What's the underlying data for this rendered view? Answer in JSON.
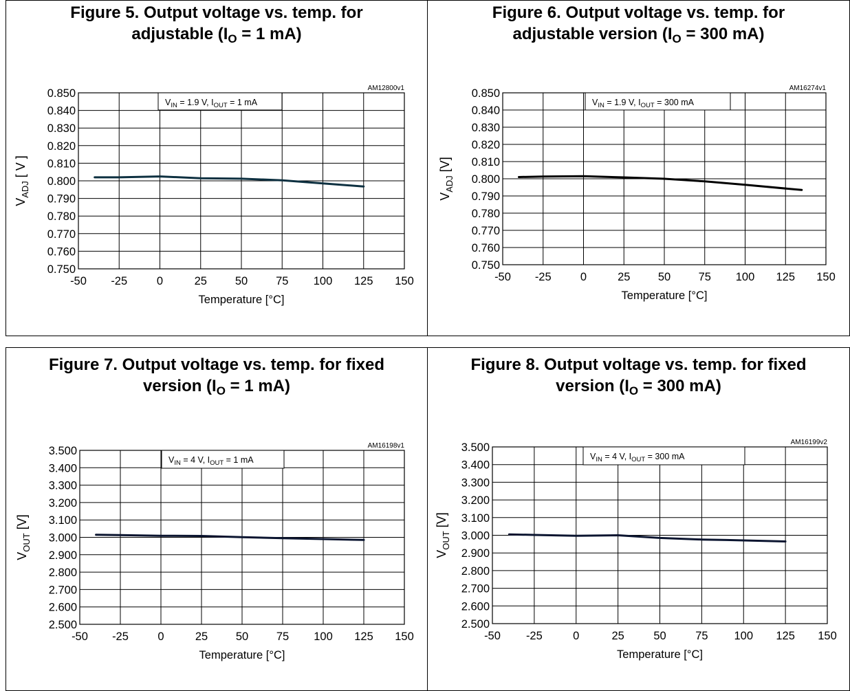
{
  "figures": [
    {
      "number_title": "Figure 5. Output voltage vs. temp. for",
      "title_line2_prefix": "adjustable (I",
      "title_line2_sub": "O",
      "title_line2_suffix": " = 1 mA)",
      "code": "AM12800v1",
      "condition": {
        "v": "V",
        "v_sub": "IN",
        "v_text": " = 1.9 V, I",
        "i_sub": "OUT",
        "i_text": " = 1 mA"
      },
      "ylabel": {
        "main": "V",
        "sub": "ADJ",
        "unit": " [ V ]"
      },
      "xlabel": "Temperature [°C]"
    },
    {
      "number_title": "Figure 6. Output voltage vs. temp. for",
      "title_line2_prefix": "adjustable version (I",
      "title_line2_sub": "O",
      "title_line2_suffix": " = 300 mA)",
      "code": "AM16274v1",
      "condition": {
        "v": "V",
        "v_sub": "IN",
        "v_text": " = 1.9 V, I",
        "i_sub": "OUT",
        "i_text": " = 300 mA"
      },
      "ylabel": {
        "main": "V",
        "sub": "ADJ",
        "unit": "   [V]"
      },
      "xlabel": "Temperature [°C]"
    },
    {
      "number_title": "Figure 7. Output voltage vs. temp. for fixed",
      "title_line2_prefix": "version (I",
      "title_line2_sub": "O",
      "title_line2_suffix": " = 1 mA)",
      "code": "AM16198v1",
      "condition": {
        "v": "V",
        "v_sub": "IN",
        "v_text": " = 4 V, I",
        "i_sub": "OUT",
        "i_text": " = 1 mA"
      },
      "ylabel": {
        "main": "V",
        "sub": "OUT",
        "unit": " [V]"
      },
      "xlabel": "Temperature [°C]"
    },
    {
      "number_title": "Figure 8. Output voltage vs. temp. for fixed",
      "title_line2_prefix": "version (I",
      "title_line2_sub": "O",
      "title_line2_suffix": " = 300 mA)",
      "code": "AM16199v2",
      "condition": {
        "v": "V",
        "v_sub": "IN",
        "v_text": " = 4 V, I",
        "i_sub": "OUT",
        "i_text": " = 300 mA"
      },
      "ylabel": {
        "main": "V",
        "sub": "OUT",
        "unit": " [V]"
      },
      "xlabel": "Temperature [°C]"
    }
  ],
  "chart_data": [
    {
      "type": "line",
      "x": [
        -40,
        -25,
        0,
        25,
        50,
        75,
        100,
        125
      ],
      "series": [
        {
          "values": [
            0.802,
            0.802,
            0.8025,
            0.8015,
            0.8012,
            0.8003,
            0.7985,
            0.7968
          ]
        }
      ],
      "xlim": [
        -50,
        150
      ],
      "ylim": [
        0.75,
        0.85
      ],
      "xticks": [
        "-50",
        "-25",
        "0",
        "25",
        "50",
        "75",
        "100",
        "125",
        "150"
      ],
      "yticks": [
        "0.750",
        "0.760",
        "0.770",
        "0.780",
        "0.790",
        "0.800",
        "0.810",
        "0.820",
        "0.830",
        "0.840",
        "0.850"
      ],
      "grid": true,
      "line_color": "#0d3040"
    },
    {
      "type": "line",
      "x": [
        -40,
        -25,
        0,
        25,
        50,
        75,
        100,
        135
      ],
      "series": [
        {
          "values": [
            0.801,
            0.8013,
            0.8015,
            0.8008,
            0.8,
            0.7985,
            0.7965,
            0.7935
          ]
        }
      ],
      "xlim": [
        -50,
        150
      ],
      "ylim": [
        0.75,
        0.85
      ],
      "xticks": [
        "-50",
        "-25",
        "0",
        "25",
        "50",
        "75",
        "100",
        "125",
        "150"
      ],
      "yticks": [
        "0.750",
        "0.760",
        "0.770",
        "0.780",
        "0.790",
        "0.800",
        "0.810",
        "0.820",
        "0.830",
        "0.840",
        "0.850"
      ],
      "grid": true,
      "line_color": "#000000"
    },
    {
      "type": "line",
      "x": [
        -40,
        -25,
        0,
        25,
        50,
        75,
        100,
        125
      ],
      "series": [
        {
          "values": [
            3.015,
            3.013,
            3.009,
            3.008,
            3.001,
            2.995,
            2.99,
            2.985
          ]
        }
      ],
      "xlim": [
        -50,
        150
      ],
      "ylim": [
        2.5,
        3.5
      ],
      "xticks": [
        "-50",
        "-25",
        "0",
        "25",
        "50",
        "75",
        "100",
        "125",
        "150"
      ],
      "yticks": [
        "2.500",
        "2.600",
        "2.700",
        "2.800",
        "2.900",
        "3.000",
        "3.100",
        "3.200",
        "3.300",
        "3.400",
        "3.500"
      ],
      "grid": true,
      "line_color": "#0b1530"
    },
    {
      "type": "line",
      "x": [
        -40,
        -25,
        0,
        25,
        50,
        75,
        90,
        125
      ],
      "series": [
        {
          "values": [
            3.005,
            3.002,
            2.997,
            3.0,
            2.985,
            2.976,
            2.973,
            2.965
          ]
        }
      ],
      "xlim": [
        -50,
        150
      ],
      "ylim": [
        2.5,
        3.5
      ],
      "xticks": [
        "-50",
        "-25",
        "0",
        "25",
        "50",
        "75",
        "100",
        "125",
        "150"
      ],
      "yticks": [
        "2.500",
        "2.600",
        "2.700",
        "2.800",
        "2.900",
        "3.000",
        "3.100",
        "3.200",
        "3.300",
        "3.400",
        "3.500"
      ],
      "grid": true,
      "line_color": "#0b1530"
    }
  ]
}
